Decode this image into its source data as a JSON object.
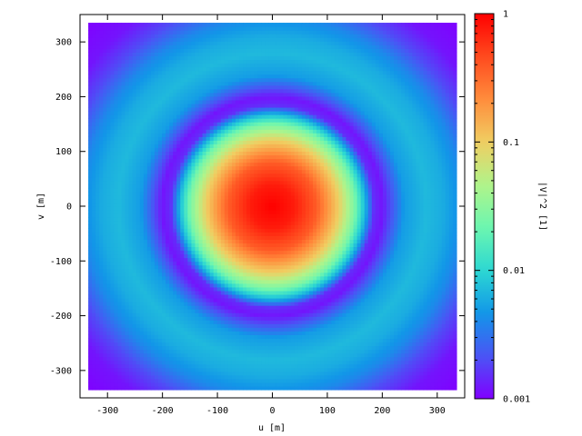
{
  "chart_data": {
    "type": "heatmap",
    "title": "",
    "xlabel": "u [m]",
    "ylabel": "v [m]",
    "xlim": [
      -350,
      350
    ],
    "ylim": [
      -350,
      350
    ],
    "data_extent": [
      -335,
      335
    ],
    "xticks": [
      -300,
      -200,
      -100,
      0,
      100,
      200,
      300
    ],
    "yticks": [
      -300,
      -200,
      -100,
      0,
      100,
      200,
      300
    ],
    "colorbar": {
      "label": "|V|^2 [1]",
      "scale": "log",
      "range": [
        0.001,
        1
      ],
      "ticks": [
        {
          "value": 0.001,
          "label": "0.001"
        },
        {
          "value": 0.01,
          "label": "0.01"
        },
        {
          "value": 0.1,
          "label": "0.1"
        },
        {
          "value": 1,
          "label": "1"
        }
      ]
    },
    "colormap": [
      "#8000ff",
      "#4a55f5",
      "#1296e8",
      "#2cd8d2",
      "#6cf6b0",
      "#b0f48a",
      "#f0ce62",
      "#ff8c3c",
      "#ff4a1e",
      "#ff0000"
    ],
    "radial_profile": {
      "description_units": "radius in m vs |V|^2",
      "r": [
        0,
        40,
        80,
        120,
        150,
        170,
        185,
        200,
        215,
        240,
        280,
        310,
        345,
        380,
        420,
        480
      ],
      "value": [
        1.0,
        0.75,
        0.38,
        0.1,
        0.025,
        0.006,
        0.0015,
        0.0012,
        0.002,
        0.005,
        0.007,
        0.006,
        0.004,
        0.002,
        0.0012,
        0.001
      ]
    },
    "grid": false,
    "legend": "none"
  }
}
